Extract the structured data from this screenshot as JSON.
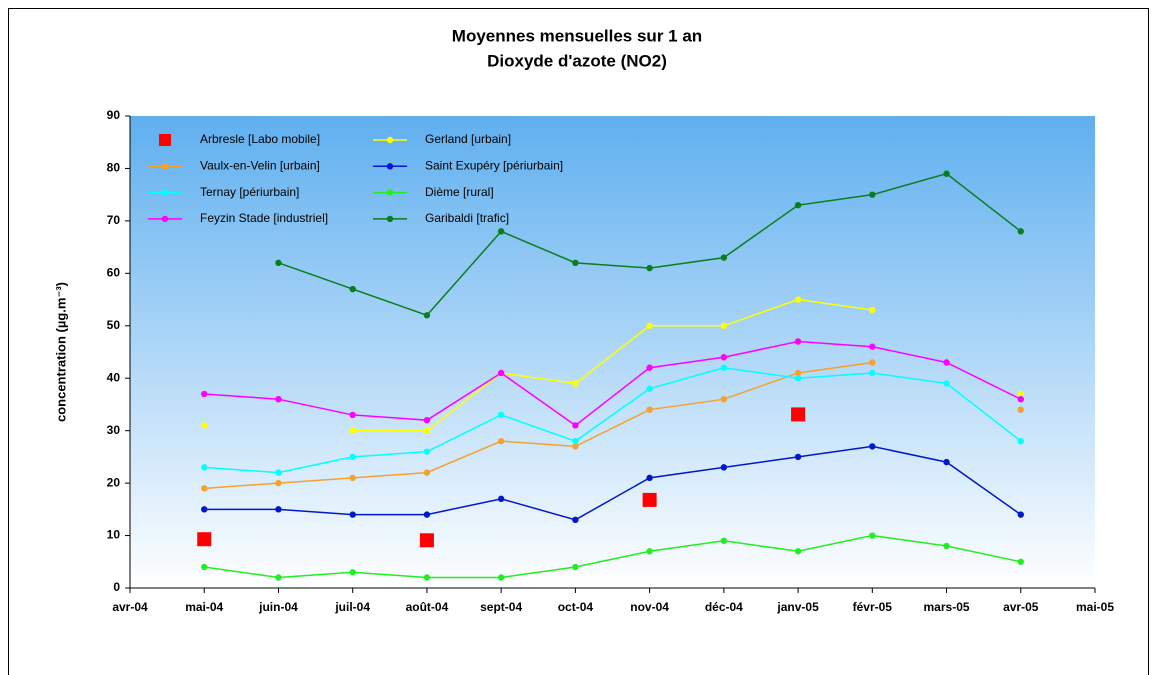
{
  "chart_data": {
    "type": "line",
    "title": "Moyennes mensuelles sur 1 an",
    "subtitle": "Dioxyde d'azote (NO2)",
    "y_label": "concentration (µg.m⁻³)",
    "categories": [
      "avr-04",
      "mai-04",
      "juin-04",
      "juil-04",
      "août-04",
      "sept-04",
      "oct-04",
      "nov-04",
      "déc-04",
      "janv-05",
      "févr-05",
      "mars-05",
      "avr-05",
      "mai-05"
    ],
    "ylim": [
      0,
      90
    ],
    "yticks": [
      0,
      10,
      20,
      30,
      40,
      50,
      60,
      70,
      80,
      90
    ],
    "legend": "top-left",
    "series": [
      {
        "name": "Arbresle [Labo mobile]",
        "color": "#ff0000",
        "marker": "square",
        "line": false,
        "values": [
          null,
          9.3,
          null,
          null,
          9.1,
          null,
          null,
          16.8,
          null,
          33.1,
          null,
          null,
          null,
          null
        ]
      },
      {
        "name": "Gerland [urbain]",
        "color": "#ffff00",
        "marker": "circle",
        "line": true,
        "values": [
          null,
          31,
          null,
          30,
          30,
          41,
          39,
          50,
          50,
          55,
          53,
          null,
          37,
          null
        ]
      },
      {
        "name": "Vaulx-en-Velin [urbain]",
        "color": "#f7a12d",
        "marker": "circle",
        "line": true,
        "values": [
          null,
          19,
          20,
          21,
          22,
          28,
          27,
          34,
          36,
          41,
          43,
          null,
          34,
          null
        ]
      },
      {
        "name": "Saint Exupéry [périurbain]",
        "color": "#0018c8",
        "marker": "circle",
        "line": true,
        "values": [
          null,
          15,
          15,
          14,
          14,
          17,
          13,
          21,
          23,
          25,
          27,
          24,
          14,
          null
        ]
      },
      {
        "name": "Ternay [périurbain]",
        "color": "#00ffff",
        "marker": "circle",
        "line": true,
        "values": [
          null,
          23,
          22,
          25,
          26,
          33,
          28,
          38,
          42,
          40,
          41,
          39,
          28,
          null
        ]
      },
      {
        "name": "Dième [rural]",
        "color": "#22ee22",
        "marker": "circle",
        "line": true,
        "values": [
          null,
          4,
          2,
          3,
          2,
          2,
          4,
          7,
          9,
          7,
          10,
          8,
          5,
          null
        ]
      },
      {
        "name": "Feyzin Stade [industriel]",
        "color": "#ff00ff",
        "marker": "circle",
        "line": true,
        "values": [
          null,
          37,
          36,
          33,
          32,
          41,
          31,
          42,
          44,
          47,
          46,
          43,
          36,
          null
        ]
      },
      {
        "name": "Garibaldi [trafic]",
        "color": "#0a7d1e",
        "marker": "circle",
        "line": true,
        "values": [
          null,
          null,
          62,
          57,
          52,
          68,
          62,
          61,
          63,
          73,
          75,
          79,
          68,
          null
        ]
      }
    ]
  }
}
